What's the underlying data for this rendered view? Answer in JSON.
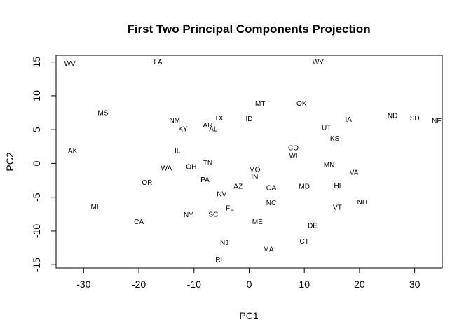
{
  "chart_data": {
    "type": "scatter",
    "title": "First Two Principal Components Projection",
    "xlabel": "PC1",
    "ylabel": "PC2",
    "xlim": [
      -35,
      35
    ],
    "ylim": [
      -15.5,
      16
    ],
    "xticks": [
      -30,
      -20,
      -10,
      0,
      10,
      20,
      30
    ],
    "yticks": [
      -15,
      -10,
      -5,
      0,
      5,
      10,
      15
    ],
    "grid": false,
    "legend": "none",
    "points": [
      {
        "label": "WV",
        "x": -32.5,
        "y": 14.7
      },
      {
        "label": "LA",
        "x": -16.5,
        "y": 14.9
      },
      {
        "label": "WY",
        "x": 12.5,
        "y": 14.9
      },
      {
        "label": "MT",
        "x": 2.0,
        "y": 8.8
      },
      {
        "label": "OK",
        "x": 9.5,
        "y": 8.8
      },
      {
        "label": "MS",
        "x": -26.5,
        "y": 7.4
      },
      {
        "label": "ND",
        "x": 26.0,
        "y": 7.0
      },
      {
        "label": "SD",
        "x": 30.0,
        "y": 6.6
      },
      {
        "label": "NE",
        "x": 34.0,
        "y": 6.2
      },
      {
        "label": "IA",
        "x": 18.0,
        "y": 6.4
      },
      {
        "label": "NM",
        "x": -13.5,
        "y": 6.3
      },
      {
        "label": "TX",
        "x": -5.5,
        "y": 6.6
      },
      {
        "label": "ID",
        "x": 0.0,
        "y": 6.5
      },
      {
        "label": "AR",
        "x": -7.5,
        "y": 5.6
      },
      {
        "label": "AL",
        "x": -6.5,
        "y": 5.0
      },
      {
        "label": "KY",
        "x": -12.0,
        "y": 5.0
      },
      {
        "label": "UT",
        "x": 14.0,
        "y": 5.2
      },
      {
        "label": "KS",
        "x": 15.5,
        "y": 3.6
      },
      {
        "label": "AK",
        "x": -32.0,
        "y": 1.8
      },
      {
        "label": "IL",
        "x": -13.0,
        "y": 1.8
      },
      {
        "label": "CO",
        "x": 8.0,
        "y": 2.2
      },
      {
        "label": "WI",
        "x": 8.0,
        "y": 1.1
      },
      {
        "label": "TN",
        "x": -7.5,
        "y": 0.0
      },
      {
        "label": "WA",
        "x": -15.0,
        "y": -0.8
      },
      {
        "label": "OH",
        "x": -10.5,
        "y": -0.6
      },
      {
        "label": "MO",
        "x": 1.0,
        "y": -1.0
      },
      {
        "label": "IN",
        "x": 1.0,
        "y": -2.1
      },
      {
        "label": "MN",
        "x": 14.5,
        "y": -0.3
      },
      {
        "label": "VA",
        "x": 19.0,
        "y": -1.4
      },
      {
        "label": "OR",
        "x": -18.5,
        "y": -2.9
      },
      {
        "label": "PA",
        "x": -8.0,
        "y": -2.5
      },
      {
        "label": "AZ",
        "x": -2.0,
        "y": -3.5
      },
      {
        "label": "GA",
        "x": 4.0,
        "y": -3.7
      },
      {
        "label": "MD",
        "x": 10.0,
        "y": -3.5
      },
      {
        "label": "HI",
        "x": 16.0,
        "y": -3.3
      },
      {
        "label": "NV",
        "x": -5.0,
        "y": -4.6
      },
      {
        "label": "NC",
        "x": 4.0,
        "y": -5.9
      },
      {
        "label": "NH",
        "x": 20.5,
        "y": -5.8
      },
      {
        "label": "MI",
        "x": -28.0,
        "y": -6.5
      },
      {
        "label": "FL",
        "x": -3.5,
        "y": -6.7
      },
      {
        "label": "VT",
        "x": 16.0,
        "y": -6.6
      },
      {
        "label": "NY",
        "x": -11.0,
        "y": -7.7
      },
      {
        "label": "SC",
        "x": -6.5,
        "y": -7.6
      },
      {
        "label": "CA",
        "x": -20.0,
        "y": -8.7
      },
      {
        "label": "ME",
        "x": 1.5,
        "y": -8.7
      },
      {
        "label": "DE",
        "x": 11.5,
        "y": -9.3
      },
      {
        "label": "CT",
        "x": 10.0,
        "y": -11.6
      },
      {
        "label": "NJ",
        "x": -4.5,
        "y": -11.8
      },
      {
        "label": "MA",
        "x": 3.5,
        "y": -12.8
      },
      {
        "label": "RI",
        "x": -5.5,
        "y": -14.3
      }
    ]
  }
}
